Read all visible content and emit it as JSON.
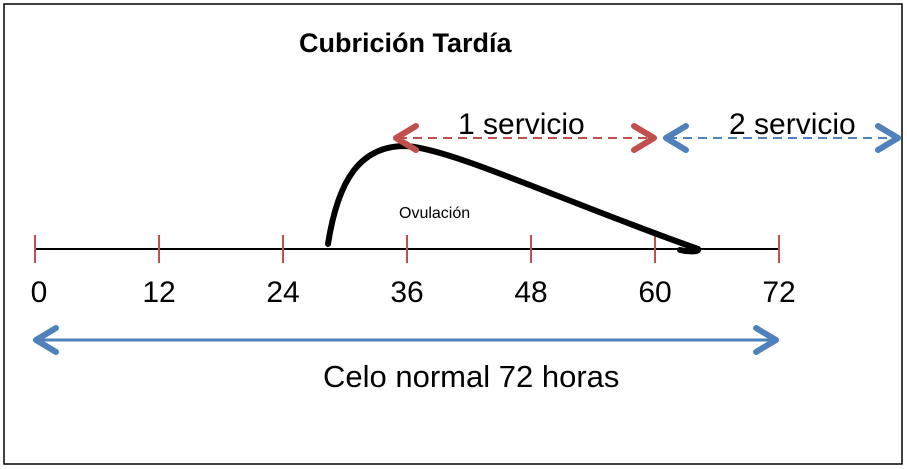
{
  "title": "Cubrición Tardía",
  "timeline": {
    "ticks": [
      0,
      12,
      24,
      36,
      48,
      60,
      72
    ],
    "max_hours": 72
  },
  "ovulation_label": "Ovulación",
  "service_1": {
    "label": "1 servicio",
    "color": "#c0504d"
  },
  "service_2": {
    "label": "2 servicio",
    "color": "#4f81bd"
  },
  "normal_heat": {
    "label": "Celo normal 72 horas",
    "color": "#4f81bd"
  },
  "colors": {
    "axis": "#000000",
    "tick": "#c0504d",
    "curve": "#000000",
    "border": "#000000"
  }
}
